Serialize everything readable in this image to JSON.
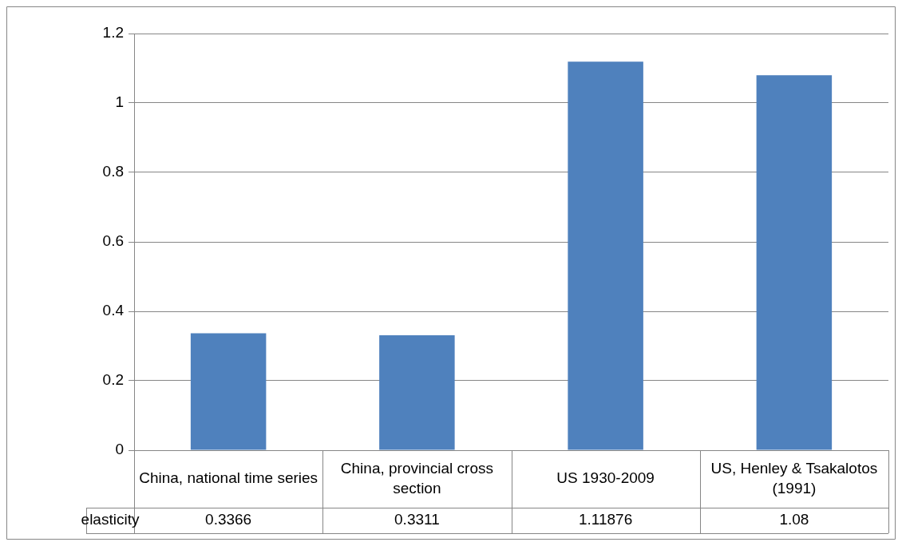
{
  "chart_data": {
    "type": "bar",
    "categories": [
      "China, national time series",
      "China, provincial cross section",
      "US 1930-2009",
      "US, Henley & Tsakalotos (1991)"
    ],
    "series": [
      {
        "name": "elasticity",
        "color": "#4f81bd",
        "values": [
          0.3366,
          0.3311,
          1.11876,
          1.08
        ]
      }
    ],
    "ylim": [
      0,
      1.2
    ],
    "yticks": [
      0,
      0.2,
      0.4,
      0.6,
      0.8,
      1,
      1.2
    ],
    "grid": "y",
    "data_labels": true
  }
}
